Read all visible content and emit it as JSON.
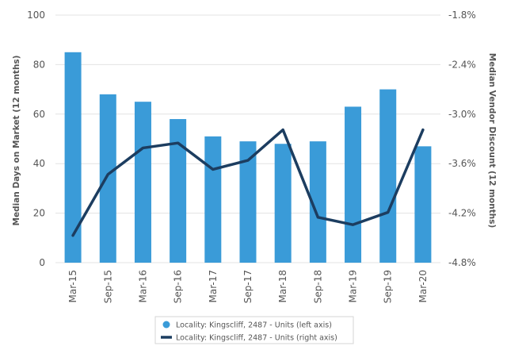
{
  "chart_data": {
    "type": "bar+line",
    "categories": [
      "Mar-15",
      "Sep-15",
      "Mar-16",
      "Sep-16",
      "Mar-17",
      "Sep-17",
      "Mar-18",
      "Sep-18",
      "Mar-19",
      "Sep-19",
      "Mar-20"
    ],
    "series": [
      {
        "name": "Locality: Kingscliff, 2487 - Units (left axis)",
        "type": "bar",
        "axis": "left",
        "color": "#3a9bd8",
        "values": [
          85,
          68,
          65,
          58,
          51,
          49,
          48,
          49,
          63,
          70,
          47
        ]
      },
      {
        "name": "Locality: Kingscliff, 2487 - Units (right axis)",
        "type": "line",
        "axis": "right",
        "color": "#1c3d60",
        "values": [
          -4.47,
          -3.73,
          -3.41,
          -3.35,
          -3.67,
          -3.56,
          -3.19,
          -4.25,
          -4.34,
          -4.19,
          -3.19
        ]
      }
    ],
    "left_axis": {
      "label": "Median Days on Market (12 months)",
      "ylim": [
        0,
        100
      ],
      "ticks": [
        "0",
        "20",
        "40",
        "60",
        "80",
        "100"
      ]
    },
    "right_axis": {
      "label": "Median Vendor Discount (12 months)",
      "ylim": [
        -4.8,
        -1.8
      ],
      "ticks": [
        "-4.8%",
        "-4.2%",
        "-3.6%",
        "-3.0%",
        "-2.4%",
        "-1.8%"
      ]
    },
    "grid": true,
    "legend_position": "bottom-center"
  }
}
